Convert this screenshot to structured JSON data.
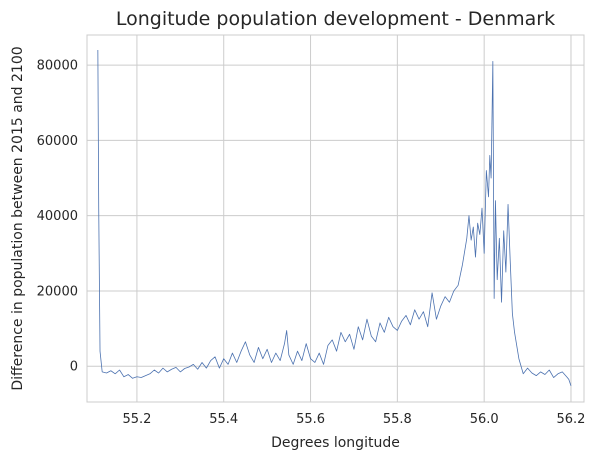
{
  "chart_data": {
    "type": "line",
    "title": "Longitude population development - Denmark",
    "xlabel": "Degrees longitude",
    "ylabel": "Difference in population between 2015 and 2100",
    "xlim": [
      55.085,
      56.23
    ],
    "ylim": [
      -9500,
      88000
    ],
    "xticks": [
      55.2,
      55.4,
      55.6,
      55.8,
      56.0,
      56.2
    ],
    "xtick_labels": [
      "55.2",
      "55.4",
      "55.6",
      "55.8",
      "56.0",
      "56.2"
    ],
    "yticks": [
      0,
      20000,
      40000,
      60000,
      80000
    ],
    "ytick_labels": [
      "0",
      "20000",
      "40000",
      "60000",
      "80000"
    ],
    "grid": true,
    "series_color": "#4c72b0",
    "series": [
      {
        "x": [
          55.11,
          55.112,
          55.115,
          55.12,
          55.13,
          55.14,
          55.15,
          55.16,
          55.17,
          55.18,
          55.19,
          55.2,
          55.21,
          55.22,
          55.23,
          55.24,
          55.25,
          55.26,
          55.27,
          55.28,
          55.29,
          55.3,
          55.31,
          55.32,
          55.33,
          55.34,
          55.35,
          55.36,
          55.37,
          55.38,
          55.39,
          55.4,
          55.41,
          55.42,
          55.43,
          55.44,
          55.45,
          55.46,
          55.47,
          55.48,
          55.49,
          55.5,
          55.51,
          55.52,
          55.53,
          55.54,
          55.545,
          55.55,
          55.56,
          55.57,
          55.58,
          55.59,
          55.6,
          55.61,
          55.62,
          55.63,
          55.64,
          55.65,
          55.66,
          55.67,
          55.68,
          55.69,
          55.7,
          55.71,
          55.72,
          55.73,
          55.74,
          55.75,
          55.76,
          55.77,
          55.78,
          55.79,
          55.8,
          55.81,
          55.82,
          55.83,
          55.84,
          55.85,
          55.86,
          55.87,
          55.88,
          55.89,
          55.9,
          55.91,
          55.92,
          55.93,
          55.94,
          55.95,
          55.96,
          55.965,
          55.97,
          55.975,
          55.98,
          55.985,
          55.99,
          55.995,
          56.0,
          56.005,
          56.01,
          56.013,
          56.016,
          56.02,
          56.023,
          56.026,
          56.03,
          56.035,
          56.04,
          56.045,
          56.05,
          56.055,
          56.06,
          56.065,
          56.07,
          56.08,
          56.09,
          56.1,
          56.11,
          56.12,
          56.13,
          56.14,
          56.15,
          56.16,
          56.17,
          56.18,
          56.19,
          56.195,
          56.2
        ],
        "y": [
          84000,
          42000,
          4000,
          -1500,
          -1800,
          -1200,
          -2000,
          -1000,
          -2800,
          -2200,
          -3200,
          -2800,
          -3000,
          -2500,
          -2000,
          -1000,
          -1800,
          -500,
          -1500,
          -800,
          -300,
          -1500,
          -600,
          -200,
          500,
          -800,
          1000,
          -500,
          1500,
          2500,
          -500,
          2000,
          500,
          3500,
          1000,
          4000,
          6500,
          3000,
          1000,
          5000,
          2000,
          4500,
          1000,
          3500,
          1500,
          6000,
          9500,
          3000,
          500,
          4000,
          1500,
          6000,
          2000,
          1000,
          3500,
          500,
          5500,
          7000,
          4000,
          9000,
          6500,
          8500,
          4500,
          10500,
          7000,
          12500,
          8000,
          6500,
          11500,
          9000,
          13000,
          10500,
          9500,
          12000,
          13500,
          11000,
          15000,
          12500,
          14500,
          10500,
          19500,
          12500,
          16000,
          18500,
          17000,
          20000,
          21500,
          27000,
          34000,
          40000,
          33500,
          37000,
          29000,
          38000,
          35000,
          42000,
          30000,
          52000,
          45000,
          56000,
          50000,
          81000,
          18000,
          44000,
          23000,
          34000,
          17000,
          36000,
          25000,
          43000,
          28000,
          14000,
          9000,
          2000,
          -2000,
          -500,
          -1800,
          -2500,
          -1500,
          -2200,
          -1000,
          -3000,
          -2000,
          -1500,
          -2800,
          -3500,
          -5200
        ]
      }
    ]
  }
}
